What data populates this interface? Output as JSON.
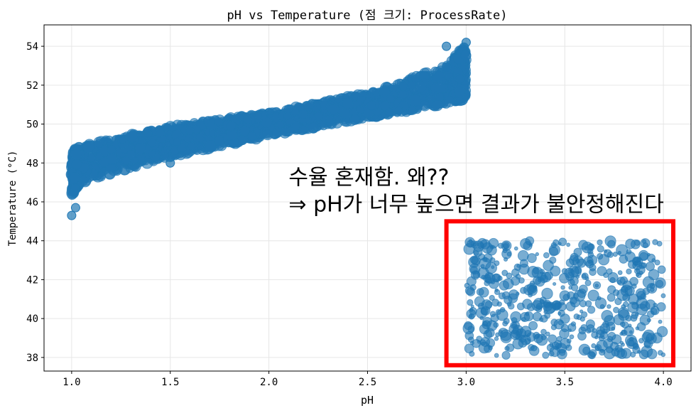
{
  "chart_data": {
    "type": "scatter",
    "title": "pH vs Temperature (점 크기: ProcessRate)",
    "xlabel": "pH",
    "ylabel": "Temperature (°C)",
    "xlim": [
      0.86,
      4.14
    ],
    "ylim": [
      37.3,
      55.1
    ],
    "xticks": [
      1.0,
      1.5,
      2.0,
      2.5,
      3.0,
      3.5,
      4.0
    ],
    "yticks": [
      38,
      40,
      42,
      44,
      46,
      48,
      50,
      52,
      54
    ],
    "grid": true,
    "color": "#1f77b4",
    "series": [
      {
        "region": "dense band",
        "x_range": [
          1.0,
          3.0
        ],
        "trend_points": [
          {
            "x": 1.0,
            "y_low": 46.3,
            "y_mid": 47.6,
            "y_high": 48.6
          },
          {
            "x": 1.05,
            "y_low": 47.0,
            "y_mid": 48.0,
            "y_high": 48.9
          },
          {
            "x": 1.5,
            "y_low": 48.3,
            "y_mid": 49.2,
            "y_high": 49.9
          },
          {
            "x": 2.0,
            "y_low": 49.4,
            "y_mid": 50.0,
            "y_high": 50.6
          },
          {
            "x": 2.5,
            "y_low": 50.3,
            "y_mid": 50.9,
            "y_high": 51.6
          },
          {
            "x": 2.9,
            "y_low": 51.0,
            "y_mid": 52.0,
            "y_high": 53.0
          },
          {
            "x": 3.0,
            "y_low": 51.3,
            "y_mid": 52.8,
            "y_high": 54.1
          }
        ],
        "outliers": [
          [
            1.0,
            45.3
          ],
          [
            1.02,
            45.7
          ],
          [
            1.5,
            48.0
          ],
          [
            2.9,
            54.0
          ],
          [
            3.0,
            54.2
          ]
        ]
      },
      {
        "region": "scattered cloud",
        "x_range": [
          3.0,
          4.0
        ],
        "y_range": [
          38.0,
          44.0
        ]
      }
    ],
    "annotations": [
      {
        "text": "수율 혼재함. 왜??",
        "x": 2.1,
        "y": 46.9
      },
      {
        "text": "⇒ pH가 너무 높으면 결과가 불안정해진다",
        "x": 2.1,
        "y": 45.5
      }
    ],
    "highlight_box": {
      "x_range": [
        2.9,
        4.05
      ],
      "y_range": [
        37.6,
        45.0
      ],
      "color": "#ff0000"
    }
  }
}
